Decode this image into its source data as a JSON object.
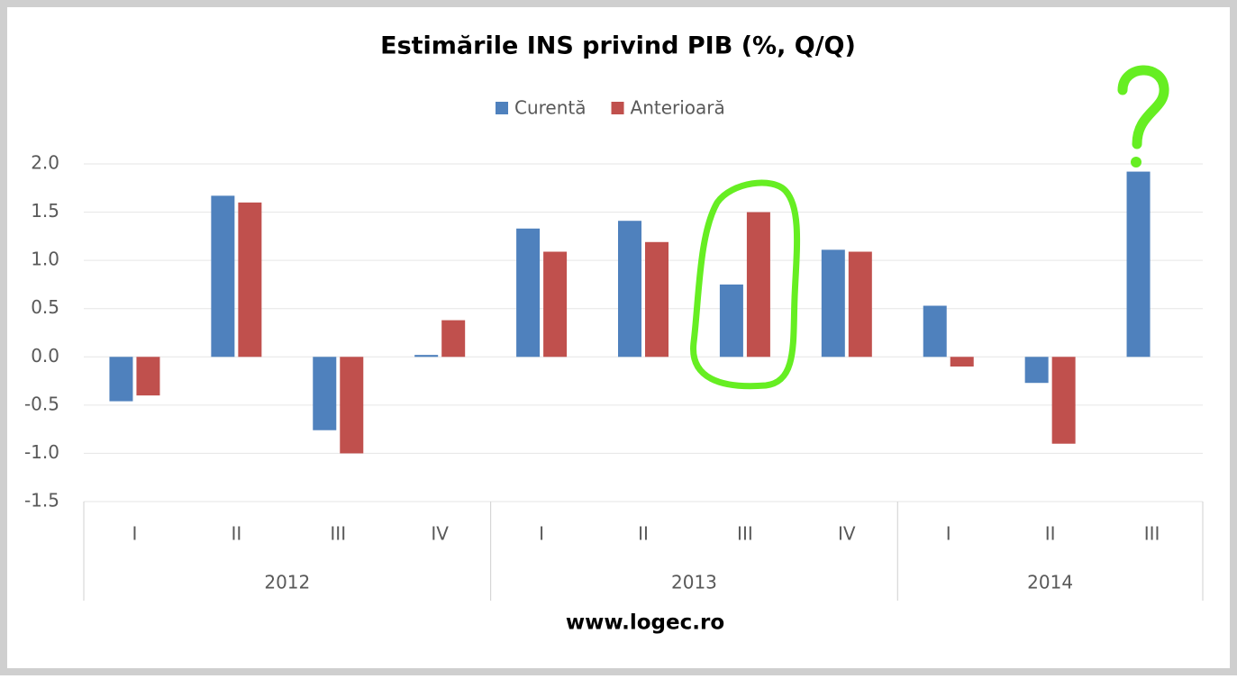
{
  "chart_data": {
    "type": "bar",
    "title": "Estimările INS privind PIB (%, Q/Q)",
    "groups": [
      {
        "name": "2012",
        "categories": [
          "I",
          "II",
          "III",
          "IV"
        ]
      },
      {
        "name": "2013",
        "categories": [
          "I",
          "II",
          "III",
          "IV"
        ]
      },
      {
        "name": "2014",
        "categories": [
          "I",
          "II",
          "III"
        ]
      }
    ],
    "series": [
      {
        "name": "Curentă",
        "color": "#4f81bd",
        "values": [
          -0.46,
          1.67,
          -0.76,
          0.02,
          1.33,
          1.41,
          0.75,
          1.11,
          0.53,
          -0.27,
          1.92
        ]
      },
      {
        "name": "Anterioară",
        "color": "#c0504d",
        "values": [
          -0.4,
          1.6,
          -1.0,
          0.38,
          1.09,
          1.19,
          1.5,
          1.09,
          -0.1,
          -0.9,
          null
        ]
      }
    ],
    "ylim": [
      -1.5,
      2.0
    ],
    "yticks": [
      -1.5,
      {
        "value": -1,
        "label": "-1.0"
      },
      -0.5,
      {
        "value": 0,
        "label": "0.0"
      },
      0.5,
      {
        "value": 1,
        "label": "1.0"
      },
      1.5,
      {
        "value": 2,
        "label": "2.0"
      }
    ],
    "grid": true,
    "legend": "top",
    "footer": "www.logec.ro"
  }
}
